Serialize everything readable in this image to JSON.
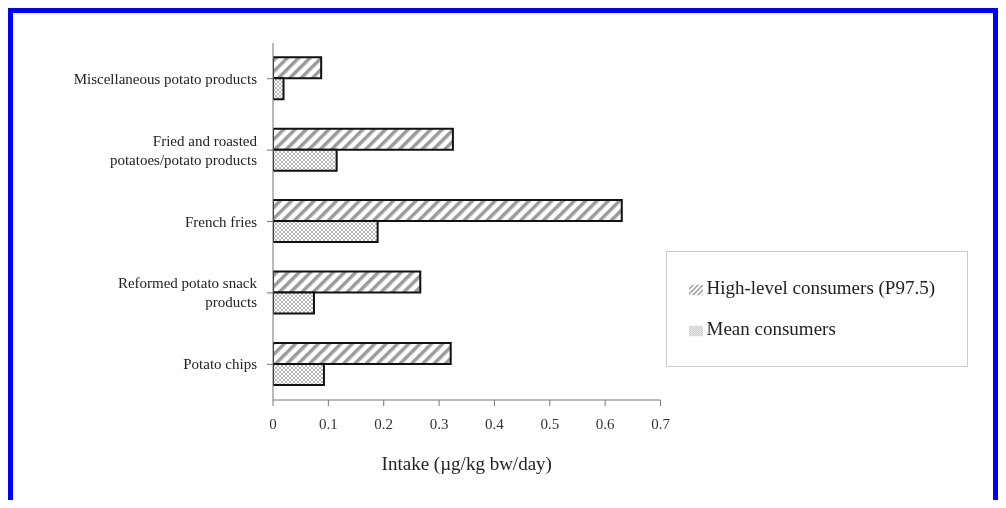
{
  "chart_data": {
    "type": "bar",
    "orientation": "horizontal",
    "xlabel": "Intake (µg/kg bw/day)",
    "categories": [
      "Miscellaneous potato products",
      "Fried and roasted potatoes/potato products",
      "French fries",
      "Reformed potato snack products",
      "Potato chips"
    ],
    "series": [
      {
        "name": "High-level consumers (P97.5)",
        "color": "#111111",
        "values": [
          0.087,
          0.325,
          0.63,
          0.266,
          0.321
        ]
      },
      {
        "name": "Mean consumers",
        "color": "#111111",
        "values": [
          0.019,
          0.115,
          0.189,
          0.074,
          0.092
        ]
      }
    ],
    "xlim": [
      0,
      0.7
    ],
    "xticks": [
      0,
      0.1,
      0.2,
      0.3,
      0.4,
      0.5,
      0.6,
      0.7
    ],
    "grid": false,
    "legend": "right"
  }
}
